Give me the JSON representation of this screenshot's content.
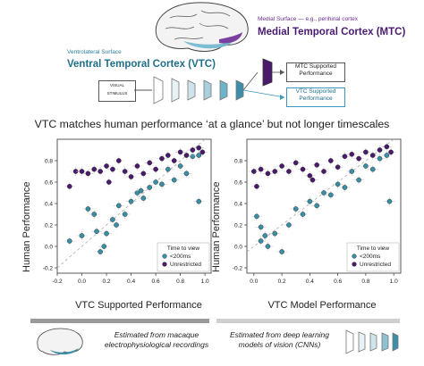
{
  "header": {
    "mtc_subtitle": "Medial Surface — e.g., perihinal cortex",
    "mtc_title": "Medial Temporal Cortex (MTC)",
    "vtc_subtitle": "Ventrolateral Surface",
    "vtc_title": "Ventral Temporal Cortex (VTC)",
    "stimulus_line1": "VISUAL",
    "stimulus_line2": "STIMULUS",
    "mtc_out_line1": "MTC Supported",
    "mtc_out_line2": "Performance",
    "vtc_out_line1": "VTC Supported",
    "vtc_out_line2": "Performance"
  },
  "headline": "VTC matches human performance ‘at a glance’ but not longer timescales",
  "colors": {
    "short": "#3a8fa5",
    "unrestricted": "#4a1a6b",
    "vtc_accent": "#2d7f9c",
    "mtc_accent": "#5a2580"
  },
  "legend": {
    "title": "Time to view",
    "short_label": "<200ms",
    "unrestricted_label": "Unrestricted"
  },
  "chart_data": [
    {
      "type": "scatter",
      "xlabel": "VTC Supported Performance",
      "ylabel": "Human Performance",
      "xlim": [
        -0.2,
        1.05
      ],
      "ylim": [
        -0.25,
        1.0
      ],
      "xticks": [
        "-0.2",
        "0.0",
        "0.2",
        "0.4",
        "0.6",
        "0.8",
        "1.0"
      ],
      "yticks": [
        "-0.2",
        "0.0",
        "0.2",
        "0.4",
        "0.6",
        "0.8"
      ],
      "series": [
        {
          "name": "<200ms",
          "points": [
            [
              -0.1,
              0.05
            ],
            [
              0.05,
              0.35
            ],
            [
              0.1,
              0.3
            ],
            [
              0.12,
              0.14
            ],
            [
              0.15,
              -0.05
            ],
            [
              0.2,
              0.12
            ],
            [
              0.25,
              0.25
            ],
            [
              0.3,
              0.38
            ],
            [
              0.35,
              0.3
            ],
            [
              0.4,
              0.42
            ],
            [
              0.45,
              0.5
            ],
            [
              0.5,
              0.45
            ],
            [
              0.55,
              0.55
            ],
            [
              0.6,
              0.6
            ],
            [
              0.65,
              0.58
            ],
            [
              0.7,
              0.72
            ],
            [
              0.75,
              0.62
            ],
            [
              0.8,
              0.75
            ],
            [
              0.85,
              0.68
            ],
            [
              0.9,
              0.84
            ],
            [
              0.95,
              0.85
            ],
            [
              0.95,
              0.42
            ],
            [
              0.0,
              0.1
            ],
            [
              0.18,
              0.0
            ],
            [
              0.28,
              0.2
            ],
            [
              0.48,
              0.52
            ]
          ]
        },
        {
          "name": "Unrestricted",
          "points": [
            [
              -0.1,
              0.56
            ],
            [
              -0.05,
              0.7
            ],
            [
              0.0,
              0.7
            ],
            [
              0.05,
              0.68
            ],
            [
              0.1,
              0.72
            ],
            [
              0.15,
              0.7
            ],
            [
              0.2,
              0.75
            ],
            [
              0.25,
              0.72
            ],
            [
              0.3,
              0.8
            ],
            [
              0.35,
              0.7
            ],
            [
              0.4,
              0.65
            ],
            [
              0.45,
              0.75
            ],
            [
              0.5,
              0.68
            ],
            [
              0.55,
              0.78
            ],
            [
              0.6,
              0.72
            ],
            [
              0.65,
              0.82
            ],
            [
              0.7,
              0.85
            ],
            [
              0.75,
              0.8
            ],
            [
              0.8,
              0.88
            ],
            [
              0.85,
              0.85
            ],
            [
              0.9,
              0.9
            ],
            [
              0.95,
              0.92
            ],
            [
              0.98,
              0.88
            ],
            [
              0.22,
              0.6
            ]
          ]
        }
      ]
    },
    {
      "type": "scatter",
      "xlabel": "VTC Model Performance",
      "ylabel": "Human Performance",
      "xlim": [
        -0.05,
        1.05
      ],
      "ylim": [
        -0.25,
        1.0
      ],
      "xticks": [
        "0.0",
        "0.2",
        "0.4",
        "0.6",
        "0.8",
        "1.0"
      ],
      "yticks": [
        "-0.2",
        "0.0",
        "0.2",
        "0.4",
        "0.6",
        "0.8"
      ],
      "series": [
        {
          "name": "<200ms",
          "points": [
            [
              0.02,
              0.28
            ],
            [
              0.05,
              0.18
            ],
            [
              0.08,
              0.1
            ],
            [
              0.1,
              0.0
            ],
            [
              0.15,
              0.12
            ],
            [
              0.2,
              -0.05
            ],
            [
              0.3,
              0.35
            ],
            [
              0.35,
              0.3
            ],
            [
              0.4,
              0.42
            ],
            [
              0.45,
              0.38
            ],
            [
              0.5,
              0.5
            ],
            [
              0.55,
              0.48
            ],
            [
              0.6,
              0.58
            ],
            [
              0.65,
              0.55
            ],
            [
              0.7,
              0.7
            ],
            [
              0.75,
              0.62
            ],
            [
              0.8,
              0.75
            ],
            [
              0.85,
              0.72
            ],
            [
              0.9,
              0.82
            ],
            [
              0.95,
              0.85
            ],
            [
              0.97,
              0.42
            ],
            [
              0.05,
              0.05
            ],
            [
              0.25,
              0.2
            ]
          ]
        },
        {
          "name": "Unrestricted",
          "points": [
            [
              0.0,
              0.7
            ],
            [
              0.02,
              0.56
            ],
            [
              0.05,
              0.72
            ],
            [
              0.1,
              0.68
            ],
            [
              0.15,
              0.7
            ],
            [
              0.2,
              0.75
            ],
            [
              0.25,
              0.7
            ],
            [
              0.3,
              0.78
            ],
            [
              0.35,
              0.72
            ],
            [
              0.4,
              0.66
            ],
            [
              0.45,
              0.76
            ],
            [
              0.5,
              0.7
            ],
            [
              0.55,
              0.8
            ],
            [
              0.6,
              0.74
            ],
            [
              0.65,
              0.84
            ],
            [
              0.7,
              0.86
            ],
            [
              0.75,
              0.82
            ],
            [
              0.8,
              0.88
            ],
            [
              0.85,
              0.85
            ],
            [
              0.9,
              0.9
            ],
            [
              0.95,
              0.93
            ],
            [
              0.98,
              0.88
            ],
            [
              0.42,
              0.62
            ]
          ]
        }
      ]
    }
  ],
  "footer": {
    "note_left": "Estimated from macaque electrophysiological recordings",
    "note_right": "Estimated from deep learning models of vision (CNNs)"
  }
}
